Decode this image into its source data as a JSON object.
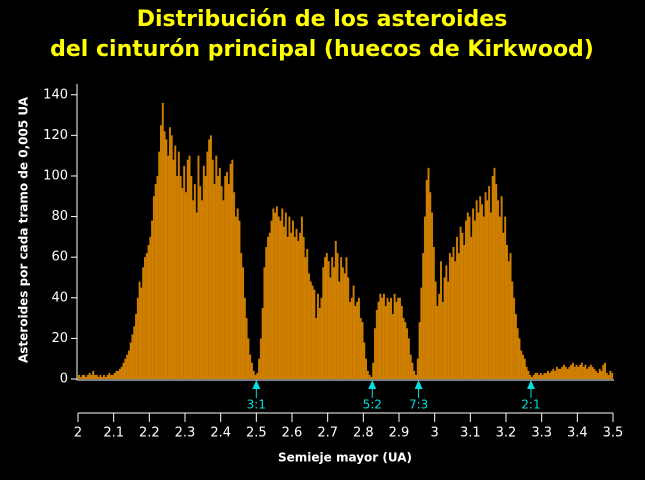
{
  "chart_data": {
    "type": "histogram",
    "title": [
      "Distribución de los asteroides",
      "del cinturón principal (huecos de Kirkwood)"
    ],
    "xlabel": "Semieje mayor (UA)",
    "ylabel": "Asteroides por cada tramo de 0,005 UA",
    "color": "#d08000",
    "bins": [
      2,
      2.005,
      2.01,
      2.015,
      2.02,
      2.025,
      2.03,
      2.035,
      2.04,
      2.045,
      2.05,
      2.055,
      2.06,
      2.065,
      2.07,
      2.075,
      2.08,
      2.085,
      2.09,
      2.095,
      2.1,
      2.105,
      2.11,
      2.115,
      2.12,
      2.125,
      2.13,
      2.135,
      2.14,
      2.145,
      2.15,
      2.155,
      2.16,
      2.165,
      2.17,
      2.175,
      2.18,
      2.185,
      2.19,
      2.195,
      2.2,
      2.205,
      2.21,
      2.215,
      2.22,
      2.225,
      2.23,
      2.235,
      2.24,
      2.245,
      2.25,
      2.255,
      2.26,
      2.265,
      2.27,
      2.275,
      2.28,
      2.285,
      2.29,
      2.295,
      2.3,
      2.305,
      2.31,
      2.315,
      2.32,
      2.325,
      2.33,
      2.335,
      2.34,
      2.345,
      2.35,
      2.355,
      2.36,
      2.365,
      2.37,
      2.375,
      2.38,
      2.385,
      2.39,
      2.395,
      2.4,
      2.405,
      2.41,
      2.415,
      2.42,
      2.425,
      2.43,
      2.435,
      2.44,
      2.445,
      2.45,
      2.455,
      2.46,
      2.465,
      2.47,
      2.475,
      2.48,
      2.485,
      2.49,
      2.495,
      2.5,
      2.505,
      2.51,
      2.515,
      2.52,
      2.525,
      2.53,
      2.535,
      2.54,
      2.545,
      2.55,
      2.555,
      2.56,
      2.565,
      2.57,
      2.575,
      2.58,
      2.585,
      2.59,
      2.595,
      2.6,
      2.605,
      2.61,
      2.615,
      2.62,
      2.625,
      2.63,
      2.635,
      2.64,
      2.645,
      2.65,
      2.655,
      2.66,
      2.665,
      2.67,
      2.675,
      2.68,
      2.685,
      2.69,
      2.695,
      2.7,
      2.705,
      2.71,
      2.715,
      2.72,
      2.725,
      2.73,
      2.735,
      2.74,
      2.745,
      2.75,
      2.755,
      2.76,
      2.765,
      2.77,
      2.775,
      2.78,
      2.785,
      2.79,
      2.795,
      2.8,
      2.805,
      2.81,
      2.815,
      2.82,
      2.825,
      2.83,
      2.835,
      2.84,
      2.845,
      2.85,
      2.855,
      2.86,
      2.865,
      2.87,
      2.875,
      2.88,
      2.885,
      2.89,
      2.895,
      2.9,
      2.905,
      2.91,
      2.915,
      2.92,
      2.925,
      2.93,
      2.935,
      2.94,
      2.945,
      2.95,
      2.955,
      2.96,
      2.965,
      2.97,
      2.975,
      2.98,
      2.985,
      2.99,
      2.995,
      3,
      3.005,
      3.01,
      3.015,
      3.02,
      3.025,
      3.03,
      3.035,
      3.04,
      3.045,
      3.05,
      3.055,
      3.06,
      3.065,
      3.07,
      3.075,
      3.08,
      3.085,
      3.09,
      3.095,
      3.1,
      3.105,
      3.11,
      3.115,
      3.12,
      3.125,
      3.13,
      3.135,
      3.14,
      3.145,
      3.15,
      3.155,
      3.16,
      3.165,
      3.17,
      3.175,
      3.18,
      3.185,
      3.19,
      3.195,
      3.2,
      3.205,
      3.21,
      3.215,
      3.22,
      3.225,
      3.23,
      3.235,
      3.24,
      3.245,
      3.25,
      3.255,
      3.26,
      3.265,
      3.27,
      3.275,
      3.28,
      3.285,
      3.29,
      3.295,
      3.3,
      3.305,
      3.31,
      3.315,
      3.32,
      3.325,
      3.33,
      3.335,
      3.34,
      3.345,
      3.35,
      3.355,
      3.36,
      3.365,
      3.37,
      3.375,
      3.38,
      3.385,
      3.39,
      3.395,
      3.4,
      3.405,
      3.41,
      3.415,
      3.42,
      3.425,
      3.43,
      3.435,
      3.44,
      3.445,
      3.45,
      3.455,
      3.46,
      3.465,
      3.47,
      3.475,
      3.48,
      3.485,
      3.49,
      3.495,
      3.5
    ],
    "values": [
      2,
      1,
      2,
      2,
      1,
      2,
      3,
      2,
      4,
      2,
      2,
      1,
      2,
      1,
      2,
      1,
      2,
      3,
      2,
      2,
      3,
      4,
      4,
      5,
      6,
      8,
      10,
      12,
      14,
      18,
      22,
      26,
      32,
      40,
      48,
      45,
      55,
      60,
      62,
      66,
      70,
      78,
      90,
      96,
      100,
      112,
      125,
      136,
      122,
      118,
      110,
      124,
      120,
      108,
      115,
      100,
      112,
      100,
      94,
      105,
      92,
      108,
      110,
      100,
      88,
      96,
      82,
      110,
      95,
      88,
      105,
      100,
      112,
      118,
      120,
      108,
      96,
      110,
      100,
      104,
      95,
      88,
      100,
      102,
      96,
      106,
      108,
      92,
      80,
      84,
      78,
      62,
      55,
      40,
      30,
      20,
      12,
      8,
      4,
      2,
      3,
      10,
      20,
      35,
      55,
      65,
      70,
      72,
      78,
      84,
      82,
      85,
      80,
      78,
      84,
      75,
      82,
      70,
      80,
      72,
      78,
      70,
      74,
      68,
      72,
      80,
      70,
      60,
      64,
      52,
      48,
      46,
      44,
      30,
      42,
      35,
      40,
      55,
      60,
      62,
      58,
      50,
      60,
      55,
      68,
      62,
      48,
      60,
      55,
      52,
      60,
      50,
      38,
      40,
      46,
      36,
      38,
      40,
      30,
      28,
      18,
      10,
      4,
      2,
      1,
      8,
      25,
      34,
      38,
      42,
      40,
      42,
      36,
      40,
      38,
      40,
      32,
      42,
      38,
      40,
      40,
      36,
      30,
      28,
      25,
      20,
      12,
      8,
      4,
      2,
      10,
      28,
      45,
      62,
      80,
      98,
      104,
      92,
      82,
      65,
      48,
      36,
      42,
      58,
      38,
      50,
      56,
      48,
      62,
      60,
      65,
      58,
      70,
      62,
      75,
      72,
      66,
      78,
      82,
      80,
      70,
      84,
      78,
      88,
      82,
      90,
      86,
      80,
      92,
      88,
      95,
      82,
      100,
      104,
      96,
      88,
      80,
      90,
      72,
      80,
      66,
      58,
      62,
      48,
      40,
      32,
      25,
      20,
      14,
      12,
      10,
      6,
      4,
      2,
      1,
      2,
      3,
      3,
      2,
      3,
      2,
      3,
      3,
      4,
      3,
      4,
      5,
      4,
      6,
      5,
      5,
      6,
      7,
      6,
      5,
      6,
      7,
      8,
      6,
      7,
      6,
      7,
      8,
      6,
      7,
      5,
      6,
      7,
      6,
      5,
      4,
      3,
      5,
      4,
      7,
      8,
      3,
      2,
      4,
      3
    ],
    "xlim": [
      2,
      3.5
    ],
    "xticks": [
      2,
      2.1,
      2.2,
      2.3,
      2.4,
      2.5,
      2.6,
      2.7,
      2.8,
      2.9,
      3,
      3.1,
      3.2,
      3.3,
      3.4,
      3.5
    ],
    "ylim": [
      0,
      145
    ],
    "yticks": [
      0,
      20,
      40,
      60,
      80,
      100,
      120,
      140
    ],
    "resonances": [
      {
        "x": 2.5,
        "label": "3:1"
      },
      {
        "x": 2.825,
        "label": "5:2"
      },
      {
        "x": 2.955,
        "label": "7:3"
      },
      {
        "x": 3.27,
        "label": "2:1"
      }
    ],
    "annotation_color": "#00e0e0"
  }
}
